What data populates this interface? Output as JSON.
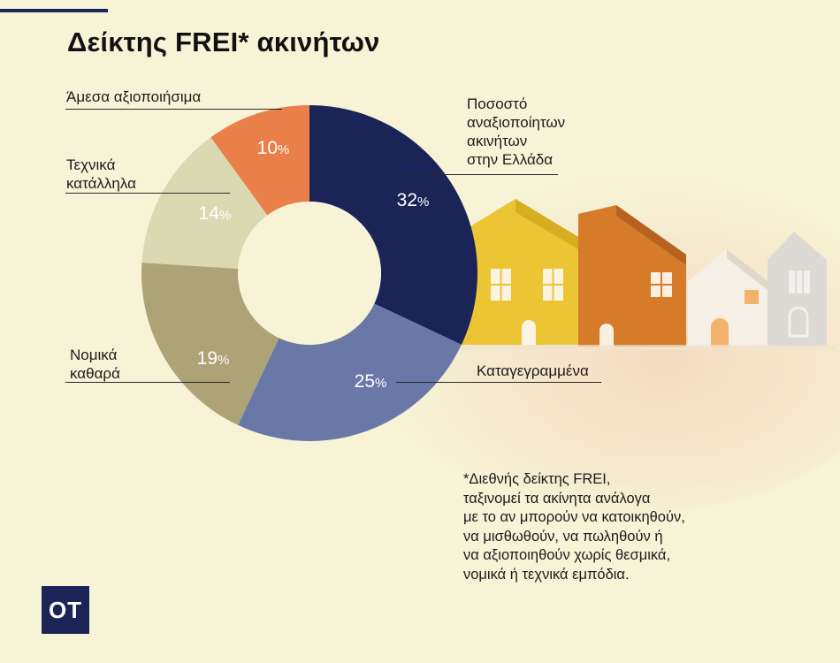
{
  "title": "Δείκτης FREI* ακινήτων",
  "chart_data": {
    "type": "pie",
    "donut": true,
    "categories": [
      "Ποσοστό αναξιοποίητων ακινήτων στην Ελλάδα",
      "Καταγεγραμμένα",
      "Νομικά καθαρά",
      "Τεχνικά κατάλληλα",
      "Άμεσα αξιοποιήσιμα"
    ],
    "values": [
      32,
      25,
      19,
      14,
      10
    ],
    "unit": "%",
    "colors": [
      "#1b2457",
      "#6a78a8",
      "#aea377",
      "#dbd9b2",
      "#e97f49"
    ],
    "labels": {
      "unused": "Ποσοστό\nαναξιοποίητων\nακινήτων\nστην Ελλάδα",
      "registered": "Καταγεγραμμένα",
      "legal": "Νομικά\nκαθαρά",
      "technical": "Τεχνικά\nκατάλληλα",
      "ready": "Άμεσα αξιοποιήσιμα"
    }
  },
  "footnote": "*Διεθνής δείκτης FREI,\nταξινομεί τα ακίνητα ανάλογα\nμε το αν μπορούν να κατοικηθούν,\nνα μισθωθούν, να πωληθούν ή\nνα αξιοποιηθούν χωρίς θεσμικά,\nνομικά ή τεχνικά εμπόδια.",
  "logo": "OT",
  "icons": [
    "house-illustration"
  ]
}
